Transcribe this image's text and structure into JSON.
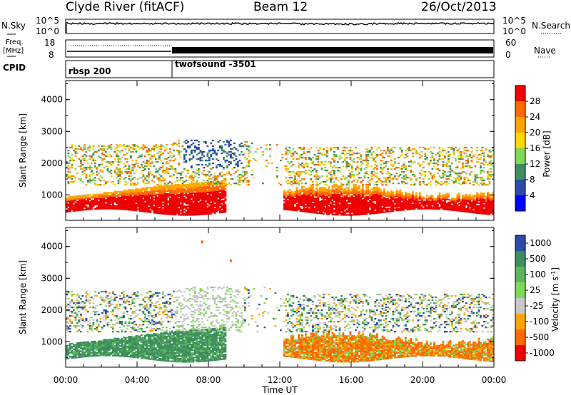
{
  "header": {
    "station": "Clyde River (fitACF)",
    "beam": "Beam 12",
    "date": "26/Oct/2013"
  },
  "chart_data": [
    {
      "type": "line",
      "panel": "sky-search-noise",
      "left_label": "N.Sky",
      "right_label": "N.Search",
      "left_ticks": [
        "10^5",
        "10^0"
      ],
      "right_ticks": [
        "10^5",
        "10^0"
      ],
      "scale": "log"
    },
    {
      "type": "line",
      "panel": "frequency-nave",
      "left_label_top": "Freq.",
      "left_label_bottom": "[MHz]",
      "right_label": "Nave",
      "left_ticks": [
        "18",
        "8"
      ],
      "right_ticks": [
        "60",
        "0"
      ],
      "ylim_left": [
        8,
        18
      ],
      "ylim_right": [
        0,
        60
      ]
    },
    {
      "type": "table",
      "panel": "cpid",
      "label": "CPID",
      "segments": [
        {
          "name": "rbsp 200",
          "start_hour": 0,
          "end_hour": 6
        },
        {
          "name": "twofsound -3501",
          "start_hour": 6,
          "end_hour": 24
        }
      ]
    },
    {
      "type": "heatmap",
      "panel": "power",
      "ylabel": "Slant Range [km]",
      "xlim": [
        0,
        24
      ],
      "ylim": [
        200,
        4600
      ],
      "yticks": [
        "1000",
        "2000",
        "3000",
        "4000"
      ],
      "colorbar_label": "Power [dB]",
      "colorbar_ticks": [
        "28",
        "24",
        "20",
        "16",
        "12",
        "8",
        "4"
      ],
      "colorbar_colors": [
        "#ee0000",
        "#ff6a00",
        "#ffa500",
        "#ffd800",
        "#7ed957",
        "#3e8e5e",
        "#2c4aa8",
        "#0000ff"
      ]
    },
    {
      "type": "heatmap",
      "panel": "velocity",
      "ylabel": "Slant Range [km]",
      "xlim": [
        0,
        24
      ],
      "ylim": [
        200,
        4600
      ],
      "yticks": [
        "1000",
        "2000",
        "3000",
        "4000"
      ],
      "colorbar_label": "Velocity [m s",
      "colorbar_label_sup": "-1",
      "colorbar_label_end": "]",
      "colorbar_ticks": [
        "1000",
        "500",
        "100",
        "25",
        "-25",
        "-100",
        "-500",
        "-1000"
      ],
      "colorbar_colors": [
        "#2c4aa8",
        "#3e8e5e",
        "#5ab85a",
        "#7ed957",
        "#c8c8c8",
        "#ffa500",
        "#ff6a00",
        "#ee0000"
      ],
      "xticks": [
        "00:00",
        "04:00",
        "08:00",
        "12:00",
        "16:00",
        "20:00",
        "00:00"
      ],
      "xlabel": "Time UT"
    }
  ]
}
